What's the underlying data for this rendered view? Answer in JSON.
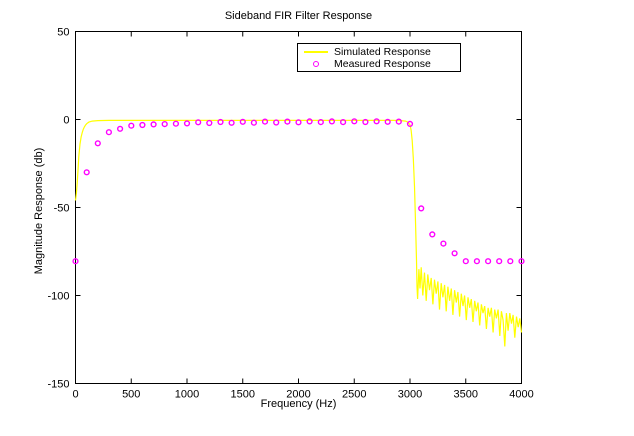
{
  "chart_data": {
    "type": "line",
    "title": "Sideband FIR Filter Response",
    "xlabel": "Frequency (Hz)",
    "ylabel": "Magnitude Response (db)",
    "xlim": [
      0,
      4000
    ],
    "ylim": [
      -150,
      50
    ],
    "xticks": [
      0,
      500,
      1000,
      1500,
      2000,
      2500,
      3000,
      3500,
      4000
    ],
    "yticks": [
      50,
      0,
      -50,
      -100,
      -150
    ],
    "grid": false,
    "background": "#ffffff",
    "axis_color": "#000000",
    "legend": {
      "position": "top-center",
      "border": true
    },
    "series": [
      {
        "name": "Simulated Response",
        "type": "line",
        "color": "#ffff00",
        "points": [
          [
            0,
            -46
          ],
          [
            8,
            -42
          ],
          [
            15,
            -36
          ],
          [
            22,
            -29
          ],
          [
            30,
            -21
          ],
          [
            40,
            -14
          ],
          [
            50,
            -10
          ],
          [
            60,
            -7.5
          ],
          [
            70,
            -5.5
          ],
          [
            80,
            -4.2
          ],
          [
            90,
            -3.2
          ],
          [
            100,
            -2.4
          ],
          [
            120,
            -1.5
          ],
          [
            150,
            -0.9
          ],
          [
            200,
            -0.6
          ],
          [
            300,
            -0.5
          ],
          [
            500,
            -0.5
          ],
          [
            800,
            -0.5
          ],
          [
            1200,
            -0.5
          ],
          [
            1600,
            -0.5
          ],
          [
            2000,
            -0.5
          ],
          [
            2400,
            -0.5
          ],
          [
            2700,
            -0.5
          ],
          [
            2850,
            -0.5
          ],
          [
            2920,
            -0.6
          ],
          [
            2960,
            -0.9
          ],
          [
            2980,
            -1.5
          ],
          [
            3000,
            -3
          ],
          [
            3010,
            -6
          ],
          [
            3020,
            -12
          ],
          [
            3030,
            -22
          ],
          [
            3040,
            -38
          ],
          [
            3050,
            -60
          ],
          [
            3058,
            -80
          ],
          [
            3063,
            -95
          ],
          [
            3068,
            -102
          ],
          [
            3080,
            -85
          ],
          [
            3090,
            -96
          ],
          [
            3100,
            -84
          ],
          [
            3115,
            -100
          ],
          [
            3130,
            -87
          ],
          [
            3145,
            -103
          ],
          [
            3160,
            -88
          ],
          [
            3175,
            -97
          ],
          [
            3190,
            -90
          ],
          [
            3205,
            -105
          ],
          [
            3220,
            -91
          ],
          [
            3235,
            -99
          ],
          [
            3250,
            -92
          ],
          [
            3265,
            -108
          ],
          [
            3280,
            -93
          ],
          [
            3295,
            -101
          ],
          [
            3310,
            -94
          ],
          [
            3325,
            -109
          ],
          [
            3340,
            -95
          ],
          [
            3355,
            -103
          ],
          [
            3370,
            -96
          ],
          [
            3385,
            -111
          ],
          [
            3400,
            -97
          ],
          [
            3415,
            -104
          ],
          [
            3430,
            -98
          ],
          [
            3445,
            -112
          ],
          [
            3460,
            -99
          ],
          [
            3475,
            -106
          ],
          [
            3490,
            -100
          ],
          [
            3505,
            -114
          ],
          [
            3520,
            -101
          ],
          [
            3535,
            -107
          ],
          [
            3550,
            -102
          ],
          [
            3565,
            -115
          ],
          [
            3580,
            -103
          ],
          [
            3595,
            -109
          ],
          [
            3610,
            -104
          ],
          [
            3625,
            -117
          ],
          [
            3640,
            -105
          ],
          [
            3655,
            -110
          ],
          [
            3670,
            -106
          ],
          [
            3685,
            -119
          ],
          [
            3700,
            -107
          ],
          [
            3715,
            -112
          ],
          [
            3730,
            -107
          ],
          [
            3745,
            -121
          ],
          [
            3760,
            -108
          ],
          [
            3775,
            -113
          ],
          [
            3790,
            -108
          ],
          [
            3805,
            -123
          ],
          [
            3820,
            -109
          ],
          [
            3835,
            -114
          ],
          [
            3850,
            -129
          ],
          [
            3865,
            -110
          ],
          [
            3880,
            -120
          ],
          [
            3895,
            -110
          ],
          [
            3910,
            -116
          ],
          [
            3925,
            -111
          ],
          [
            3940,
            -124
          ],
          [
            3955,
            -112
          ],
          [
            3970,
            -118
          ],
          [
            3985,
            -113
          ],
          [
            4000,
            -121
          ]
        ]
      },
      {
        "name": "Measured Response",
        "type": "scatter",
        "marker": "o",
        "color": "#ff00ff",
        "points": [
          [
            0,
            -80.5
          ],
          [
            100,
            -30
          ],
          [
            200,
            -13.5
          ],
          [
            300,
            -7.2
          ],
          [
            400,
            -5.3
          ],
          [
            500,
            -3.5
          ],
          [
            600,
            -3.1
          ],
          [
            700,
            -2.8
          ],
          [
            800,
            -2.6
          ],
          [
            900,
            -2.4
          ],
          [
            1000,
            -2.2
          ],
          [
            1100,
            -1.6
          ],
          [
            1200,
            -2.0
          ],
          [
            1300,
            -1.4
          ],
          [
            1400,
            -1.9
          ],
          [
            1500,
            -1.3
          ],
          [
            1600,
            -1.8
          ],
          [
            1700,
            -1.2
          ],
          [
            1800,
            -1.7
          ],
          [
            1900,
            -1.2
          ],
          [
            2000,
            -1.6
          ],
          [
            2100,
            -1.1
          ],
          [
            2200,
            -1.5
          ],
          [
            2300,
            -1.1
          ],
          [
            2400,
            -1.5
          ],
          [
            2500,
            -1.0
          ],
          [
            2600,
            -1.4
          ],
          [
            2700,
            -1.0
          ],
          [
            2800,
            -1.3
          ],
          [
            2900,
            -1.2
          ],
          [
            3000,
            -2.5
          ],
          [
            3100,
            -50.5
          ],
          [
            3200,
            -65.3
          ],
          [
            3300,
            -70.5
          ],
          [
            3400,
            -76
          ],
          [
            3500,
            -80.5
          ],
          [
            3600,
            -80.5
          ],
          [
            3700,
            -80.5
          ],
          [
            3800,
            -80.5
          ],
          [
            3900,
            -80.5
          ],
          [
            4000,
            -80.5
          ]
        ]
      }
    ]
  }
}
